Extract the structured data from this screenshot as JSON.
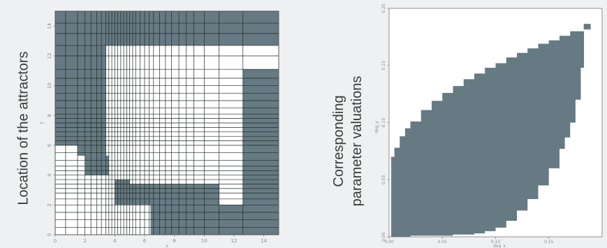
{
  "left_label": "Location of the attractors",
  "right_label_line1": "Corresponding",
  "right_label_line2": "parameter valuations",
  "colors": {
    "fill": "#667a83",
    "grid": "#1e2a24",
    "background": "#eef0f2",
    "plot_bg": "#ffffff"
  },
  "chart_data": [
    {
      "type": "heatmap",
      "title": "",
      "xlabel": "x",
      "ylabel": "y",
      "xlim": [
        0,
        15
      ],
      "ylim": [
        0,
        15
      ],
      "x_ticks": [
        "0",
        "2",
        "4",
        "6",
        "8",
        "10",
        "12",
        "14"
      ],
      "y_ticks": [
        "0",
        "2",
        "4",
        "6",
        "8",
        "10",
        "12",
        "14"
      ],
      "grid_x": [
        0,
        0.7,
        1.5,
        2,
        2.4,
        2.8,
        3.1,
        3.4,
        3.6,
        3.8,
        4,
        4.2,
        4.4,
        4.6,
        4.8,
        5,
        5.2,
        5.4,
        5.7,
        6,
        6.3,
        6.6,
        7,
        7.4,
        7.8,
        8.3,
        8.8,
        9.3,
        10,
        11,
        12.6,
        15
      ],
      "grid_y": [
        0,
        0.5,
        1,
        1.5,
        2,
        2.4,
        2.8,
        3.1,
        3.4,
        3.7,
        4,
        4.3,
        4.6,
        5,
        5.5,
        6,
        6.3,
        6.6,
        6.9,
        7.2,
        7.5,
        7.8,
        8.1,
        8.5,
        9,
        9.5,
        10,
        10.5,
        11.1,
        12,
        12.7,
        13.5,
        14.2,
        15
      ],
      "attractor_cells": [
        [
          0,
          15,
          12.7,
          15
        ],
        [
          0,
          3.4,
          6,
          12.7
        ],
        [
          3.4,
          11,
          12.7,
          15
        ],
        [
          11,
          12.6,
          15,
          15
        ],
        [
          1.5,
          3.4,
          5.3,
          6
        ],
        [
          2,
          3.6,
          4,
          5.3
        ],
        [
          12.6,
          15,
          0,
          11.1
        ],
        [
          6.4,
          12.6,
          0,
          2
        ],
        [
          5,
          11,
          2,
          3.4
        ],
        [
          4,
          5,
          2,
          3.7
        ]
      ]
    },
    {
      "type": "area",
      "title": "",
      "xlabel": "deg_x",
      "ylabel": "deg_y",
      "xlim": [
        0,
        0.2
      ],
      "ylim": [
        0,
        0.2
      ],
      "x_ticks": [
        "0.00",
        "0.05",
        "0.10",
        "0.15"
      ],
      "y_ticks": [
        "0.00",
        "0.05",
        "0.10",
        "0.15",
        "0.20"
      ],
      "upper_boundary": {
        "x": [
          0.0,
          0.002,
          0.005,
          0.01,
          0.015,
          0.02,
          0.03,
          0.04,
          0.05,
          0.06,
          0.07,
          0.08,
          0.09,
          0.1,
          0.11,
          0.12,
          0.13,
          0.14,
          0.15,
          0.16,
          0.17,
          0.183
        ],
        "y": [
          0.0,
          0.07,
          0.078,
          0.088,
          0.095,
          0.101,
          0.111,
          0.119,
          0.126,
          0.132,
          0.138,
          0.143,
          0.148,
          0.152,
          0.157,
          0.161,
          0.165,
          0.169,
          0.172,
          0.176,
          0.18,
          0.18
        ]
      },
      "lower_boundary": {
        "x": [
          0.0,
          0.02,
          0.04,
          0.06,
          0.08,
          0.09,
          0.1,
          0.11,
          0.12,
          0.13,
          0.14,
          0.15,
          0.16,
          0.165,
          0.17,
          0.175,
          0.18,
          0.183
        ],
        "y": [
          0.0,
          0.001,
          0.001,
          0.002,
          0.003,
          0.005,
          0.008,
          0.014,
          0.023,
          0.033,
          0.045,
          0.06,
          0.077,
          0.087,
          0.1,
          0.12,
          0.148,
          0.168
        ]
      },
      "outlier_point": [
        0.186,
        0.184
      ]
    }
  ]
}
